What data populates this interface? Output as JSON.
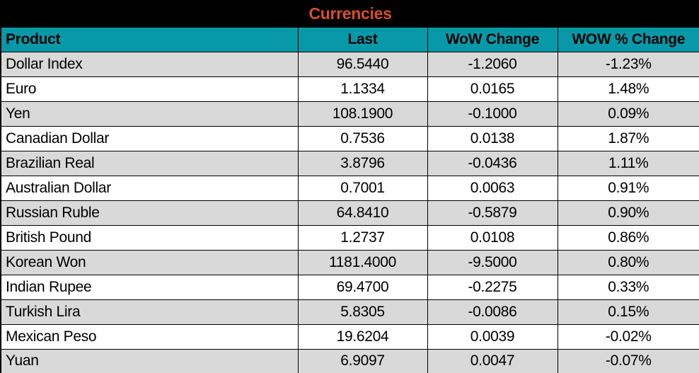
{
  "title": "Currencies",
  "colors": {
    "title_bg": "#000000",
    "title_text": "#d6502a",
    "header_bg": "#0899a8",
    "row_alt_bg": "#d9d9d9",
    "row_bg": "#ffffff",
    "grid": "#000000"
  },
  "columns": [
    "Product",
    "Last",
    "WoW Change",
    "WOW % Change"
  ],
  "rows": [
    {
      "product": "Dollar Index",
      "last": "96.5440",
      "wow_change": "-1.2060",
      "wow_pct_change": "-1.23%"
    },
    {
      "product": "Euro",
      "last": "1.1334",
      "wow_change": "0.0165",
      "wow_pct_change": "1.48%"
    },
    {
      "product": "Yen",
      "last": "108.1900",
      "wow_change": "-0.1000",
      "wow_pct_change": "0.09%"
    },
    {
      "product": "Canadian Dollar",
      "last": "0.7536",
      "wow_change": "0.0138",
      "wow_pct_change": "1.87%"
    },
    {
      "product": "Brazilian Real",
      "last": "3.8796",
      "wow_change": "-0.0436",
      "wow_pct_change": "1.11%"
    },
    {
      "product": "Australian Dollar",
      "last": "0.7001",
      "wow_change": "0.0063",
      "wow_pct_change": "0.91%"
    },
    {
      "product": "Russian Ruble",
      "last": "64.8410",
      "wow_change": "-0.5879",
      "wow_pct_change": "0.90%"
    },
    {
      "product": "British Pound",
      "last": "1.2737",
      "wow_change": "0.0108",
      "wow_pct_change": "0.86%"
    },
    {
      "product": "Korean Won",
      "last": "1181.4000",
      "wow_change": "-9.5000",
      "wow_pct_change": "0.80%"
    },
    {
      "product": "Indian Rupee",
      "last": "69.4700",
      "wow_change": "-0.2275",
      "wow_pct_change": "0.33%"
    },
    {
      "product": "Turkish Lira",
      "last": "5.8305",
      "wow_change": "-0.0086",
      "wow_pct_change": "0.15%"
    },
    {
      "product": "Mexican Peso",
      "last": "19.6204",
      "wow_change": "0.0039",
      "wow_pct_change": "-0.02%"
    },
    {
      "product": "Yuan",
      "last": "6.9097",
      "wow_change": "0.0047",
      "wow_pct_change": "-0.07%"
    }
  ]
}
